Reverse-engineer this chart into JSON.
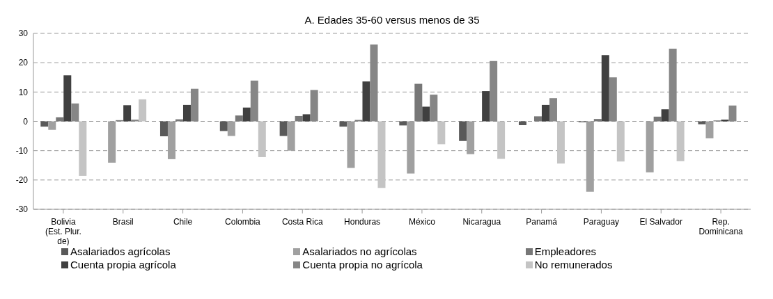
{
  "chart_data": {
    "type": "bar",
    "title": "A. Edades 35-60 versus menos de 35",
    "categories": [
      "Bolivia (Est. Plur. de)",
      "Brasil",
      "Chile",
      "Colombia",
      "Costa Rica",
      "Honduras",
      "México",
      "Nicaragua",
      "Panamá",
      "Paraguay",
      "El Salvador",
      "Rep. Dominicana"
    ],
    "series": [
      {
        "name": "Asalariados agrícolas",
        "color": "#595959",
        "values": [
          -1.8,
          null,
          -5.1,
          -3.3,
          -5.0,
          -1.8,
          -1.4,
          -6.7,
          -1.3,
          -0.3,
          0,
          -1.0
        ]
      },
      {
        "name": "Asalariados no agrícolas",
        "color": "#a0a0a0",
        "values": [
          -2.9,
          -14.1,
          -12.9,
          -5.0,
          -10.0,
          -15.9,
          -17.8,
          -11.2,
          0,
          -24.0,
          -17.4,
          -5.8
        ]
      },
      {
        "name": "Empleadores",
        "color": "#777777",
        "values": [
          1.4,
          0.4,
          0.7,
          2.0,
          1.8,
          0.5,
          12.8,
          0,
          1.7,
          0.8,
          1.6,
          0.3
        ]
      },
      {
        "name": "Cuenta propia agrícola",
        "color": "#404040",
        "values": [
          15.7,
          5.5,
          5.6,
          4.7,
          2.4,
          13.6,
          5.0,
          10.3,
          5.6,
          22.6,
          4.1,
          0.6
        ]
      },
      {
        "name": "Cuenta propia no agrícola",
        "color": "#868686",
        "values": [
          6.1,
          0.6,
          11.1,
          13.9,
          10.7,
          26.2,
          9.1,
          20.6,
          7.9,
          15.0,
          24.8,
          5.4
        ]
      },
      {
        "name": "No remunerados",
        "color": "#c4c4c4",
        "values": [
          -18.6,
          7.5,
          null,
          -12.2,
          0,
          -22.7,
          -7.8,
          -12.8,
          -14.4,
          -13.7,
          -13.6,
          null
        ]
      }
    ],
    "ylim": [
      -30,
      30
    ],
    "yticks": [
      -30,
      -20,
      -10,
      0,
      10,
      20,
      30
    ],
    "grid": "y",
    "legend": "bottom"
  }
}
